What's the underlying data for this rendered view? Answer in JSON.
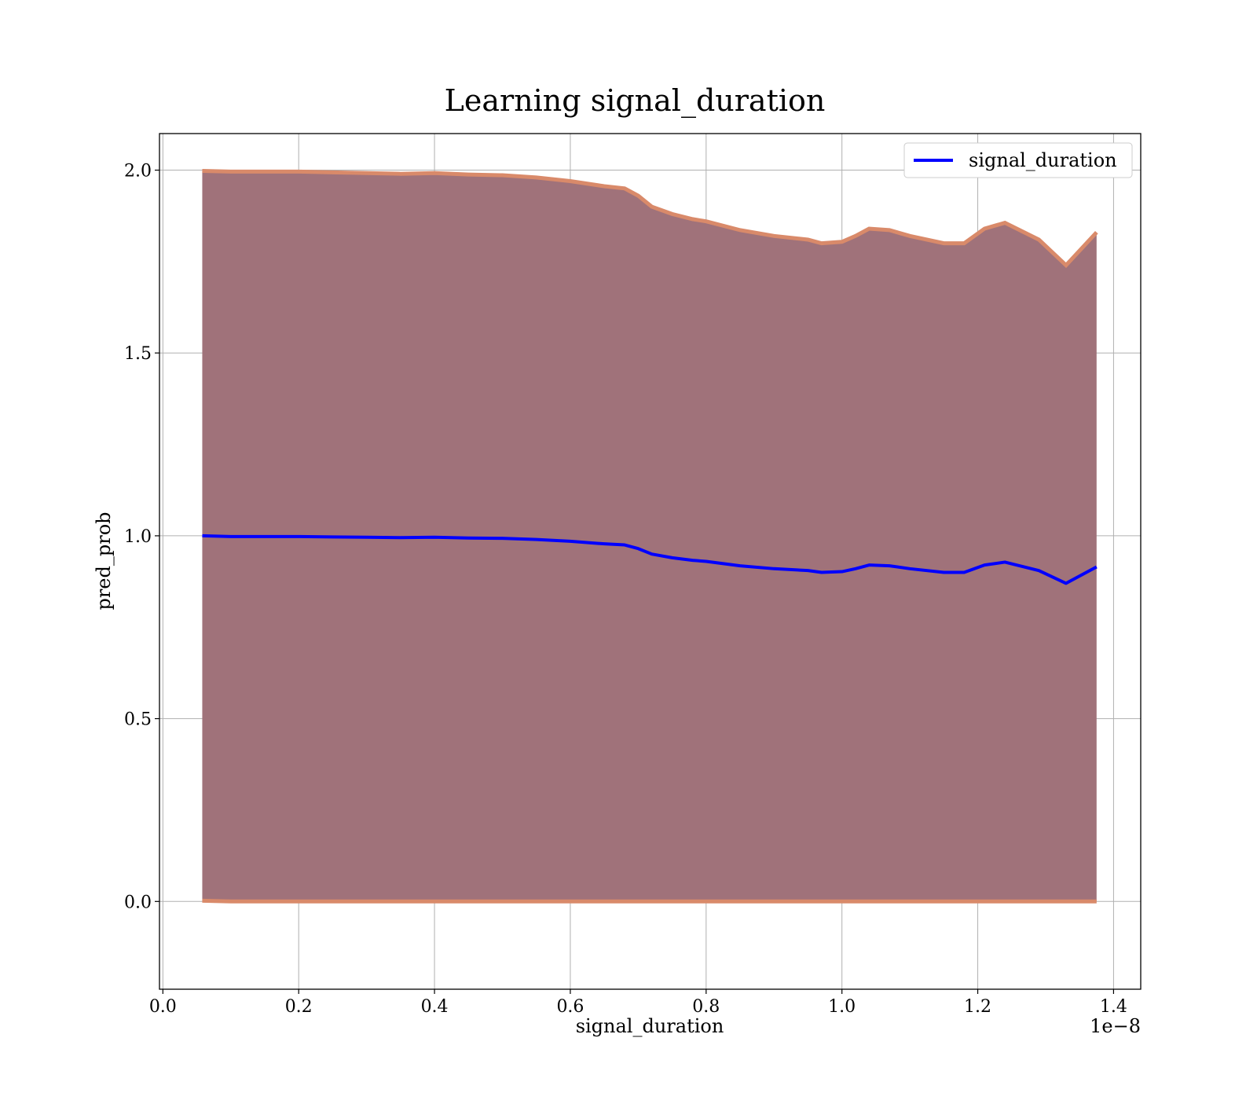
{
  "chart_data": {
    "type": "line",
    "title": "Learning signal_duration",
    "xlabel": "signal_duration",
    "ylabel": "pred_prob",
    "x_offset_text": "1e−8",
    "xlim": [
      -0.005,
      1.44
    ],
    "ylim": [
      -0.24,
      2.1
    ],
    "x_ticks": [
      0.0,
      0.2,
      0.4,
      0.6,
      0.8,
      1.0,
      1.2,
      1.4
    ],
    "x_tick_labels": [
      "0.0",
      "0.2",
      "0.4",
      "0.6",
      "0.8",
      "1.0",
      "1.2",
      "1.4"
    ],
    "y_ticks": [
      0.0,
      0.5,
      1.0,
      1.5,
      2.0
    ],
    "y_tick_labels": [
      "0.0",
      "0.5",
      "1.0",
      "1.5",
      "2.0"
    ],
    "grid": true,
    "legend_position": "top-right",
    "series": [
      {
        "name": "signal_duration",
        "color": "#0000ff",
        "x": [
          0.058,
          0.1,
          0.15,
          0.2,
          0.25,
          0.3,
          0.35,
          0.4,
          0.45,
          0.5,
          0.55,
          0.6,
          0.65,
          0.68,
          0.7,
          0.72,
          0.75,
          0.78,
          0.8,
          0.85,
          0.9,
          0.95,
          0.97,
          1.0,
          1.02,
          1.04,
          1.07,
          1.1,
          1.15,
          1.18,
          1.21,
          1.24,
          1.29,
          1.33,
          1.375
        ],
        "y": [
          1.0,
          0.998,
          0.998,
          0.998,
          0.997,
          0.996,
          0.995,
          0.996,
          0.994,
          0.993,
          0.99,
          0.985,
          0.978,
          0.975,
          0.965,
          0.95,
          0.94,
          0.933,
          0.93,
          0.918,
          0.91,
          0.905,
          0.9,
          0.902,
          0.91,
          0.92,
          0.918,
          0.91,
          0.9,
          0.9,
          0.92,
          0.928,
          0.905,
          0.87,
          0.915
        ]
      }
    ],
    "band": {
      "fill_color": "#a0727a",
      "edge_color": "#d98a6a",
      "upper": [
        1.998,
        1.996,
        1.996,
        1.996,
        1.994,
        1.992,
        1.99,
        1.992,
        1.988,
        1.986,
        1.98,
        1.97,
        1.956,
        1.95,
        1.93,
        1.9,
        1.88,
        1.866,
        1.86,
        1.836,
        1.82,
        1.81,
        1.8,
        1.804,
        1.82,
        1.84,
        1.836,
        1.82,
        1.8,
        1.8,
        1.84,
        1.856,
        1.81,
        1.74,
        1.83
      ],
      "lower": [
        0.002,
        0.0,
        0.0,
        0.0,
        0.0,
        0.0,
        0.0,
        0.0,
        0.0,
        0.0,
        0.0,
        0.0,
        0.0,
        0.0,
        0.0,
        0.0,
        0.0,
        0.0,
        0.0,
        0.0,
        0.0,
        0.0,
        0.0,
        0.0,
        0.0,
        0.0,
        0.0,
        0.0,
        0.0,
        0.0,
        0.0,
        0.0,
        0.0,
        0.0,
        0.0
      ]
    }
  }
}
